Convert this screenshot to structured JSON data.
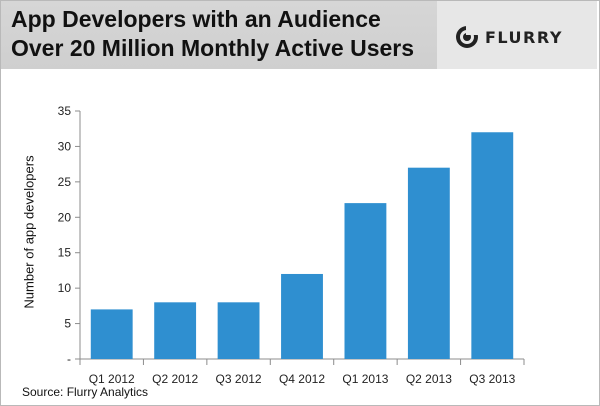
{
  "header": {
    "title_line1": "App Developers with an Audience",
    "title_line2": "Over 20 Million Monthly Active Users",
    "logo_text": "FLURRY"
  },
  "source": "Source: Flurry Analytics",
  "colors": {
    "bar": "#2f8fd0",
    "axis": "#8c8c8c",
    "header_bg": "#d3d3d3"
  },
  "chart_data": {
    "type": "bar",
    "categories": [
      "Q1 2012",
      "Q2 2012",
      "Q3 2012",
      "Q4 2012",
      "Q1 2013",
      "Q2 2013",
      "Q3 2013"
    ],
    "values": [
      7,
      8,
      8,
      12,
      22,
      27,
      32
    ],
    "ylabel": "Number of app developers",
    "xlabel": "",
    "ylim": [
      0,
      35
    ],
    "yticks": [
      0,
      5,
      10,
      15,
      20,
      25,
      30,
      35
    ],
    "ytick_labels": [
      "-",
      "5",
      "10",
      "15",
      "20",
      "25",
      "30",
      "35"
    ],
    "grid": false,
    "legend": "none"
  }
}
